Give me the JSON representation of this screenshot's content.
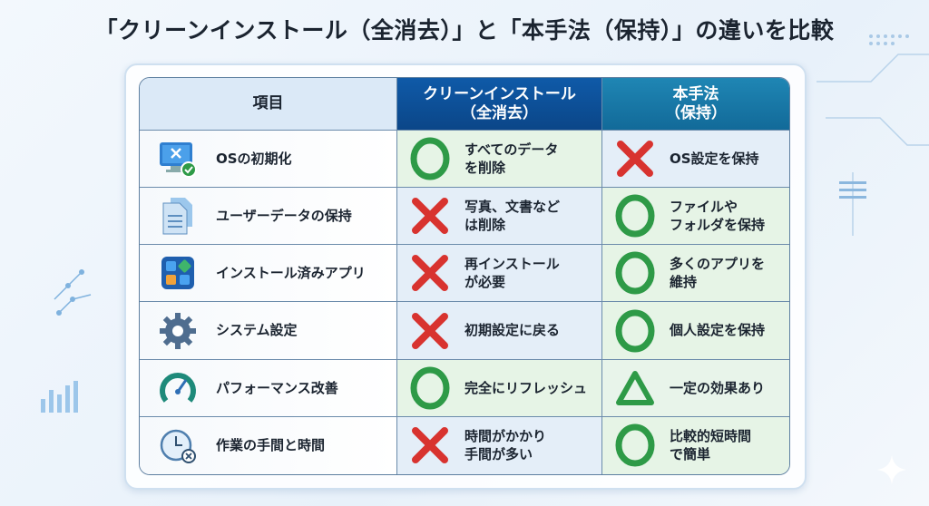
{
  "title": "「クリーンインストール（全消去）」と「本手法（保持）」の違いを比較",
  "headers": {
    "item": "項目",
    "clean": "クリーンインストール\n（全消去）",
    "method": "本手法\n（保持）"
  },
  "colors": {
    "good": "#2e9a47",
    "bad": "#d8332f",
    "header_clean": "#0d4f9c",
    "header_method": "#1a7aa8",
    "good_bg": "#e6f4e6",
    "bad_bg": "#e4eef8"
  },
  "rows": [
    {
      "icon": "monitor-check-icon",
      "item": "OSの初期化",
      "clean": {
        "mark": "circle",
        "text": "すべてのデータ\nを削除"
      },
      "method": {
        "mark": "cross",
        "text": "OS設定を保持"
      }
    },
    {
      "icon": "documents-icon",
      "item": "ユーザーデータの保持",
      "clean": {
        "mark": "cross",
        "text": "写真、文書など\nは削除"
      },
      "method": {
        "mark": "circle",
        "text": "ファイルや\nフォルダを保持"
      }
    },
    {
      "icon": "apps-icon",
      "item": "インストール済みアプリ",
      "clean": {
        "mark": "cross",
        "text": "再インストール\nが必要"
      },
      "method": {
        "mark": "circle",
        "text": "多くのアプリを\n維持"
      }
    },
    {
      "icon": "gear-icon",
      "item": "システム設定",
      "clean": {
        "mark": "cross",
        "text": "初期設定に戻る"
      },
      "method": {
        "mark": "circle",
        "text": "個人設定を保持"
      }
    },
    {
      "icon": "speedometer-icon",
      "item": "パフォーマンス改善",
      "clean": {
        "mark": "circle",
        "text": "完全にリフレッシュ"
      },
      "method": {
        "mark": "triangle",
        "text": "一定の効果あり"
      }
    },
    {
      "icon": "clock-icon",
      "item": "作業の手間と時間",
      "clean": {
        "mark": "cross",
        "text": "時間がかかり\n手間が多い"
      },
      "method": {
        "mark": "circle",
        "text": "比較的短時間\nで簡単"
      }
    }
  ]
}
